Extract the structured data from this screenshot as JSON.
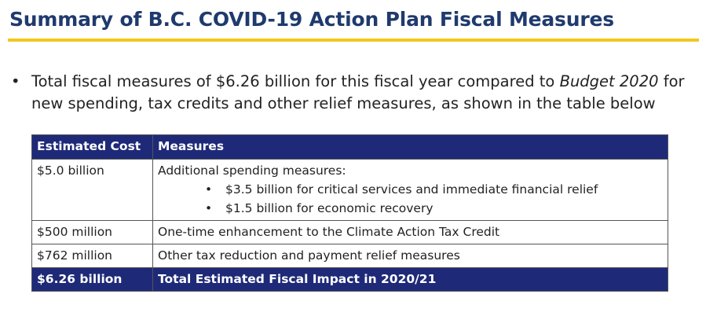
{
  "title": "Summary of B.C. COVID-19 Action Plan Fiscal Measures",
  "bullet": {
    "marker": "•",
    "text_before": "Total fiscal measures of $6.26 billion for this fiscal year compared to ",
    "text_emphasis": "Budget 2020",
    "text_after": " for new spending, tax credits and other relief measures, as shown in the table below"
  },
  "table": {
    "headers": {
      "cost": "Estimated Cost",
      "measures": "Measures"
    },
    "rows": [
      {
        "cost": "$5.0 billion",
        "measure": "Additional spending measures:",
        "subitems": [
          "$3.5 billion for critical services and immediate financial relief",
          "$1.5 billion for economic recovery"
        ]
      },
      {
        "cost": "$500 million",
        "measure": "One-time enhancement to the Climate Action Tax Credit"
      },
      {
        "cost": "$762 million",
        "measure": "Other tax reduction and payment relief measures"
      }
    ],
    "total": {
      "cost": "$6.26 billion",
      "measure": "Total Estimated Fiscal Impact in 2020/21"
    }
  },
  "colors": {
    "title": "#1f3a6e",
    "rule": "#f2c81c",
    "header_bg": "#1e2a78"
  }
}
